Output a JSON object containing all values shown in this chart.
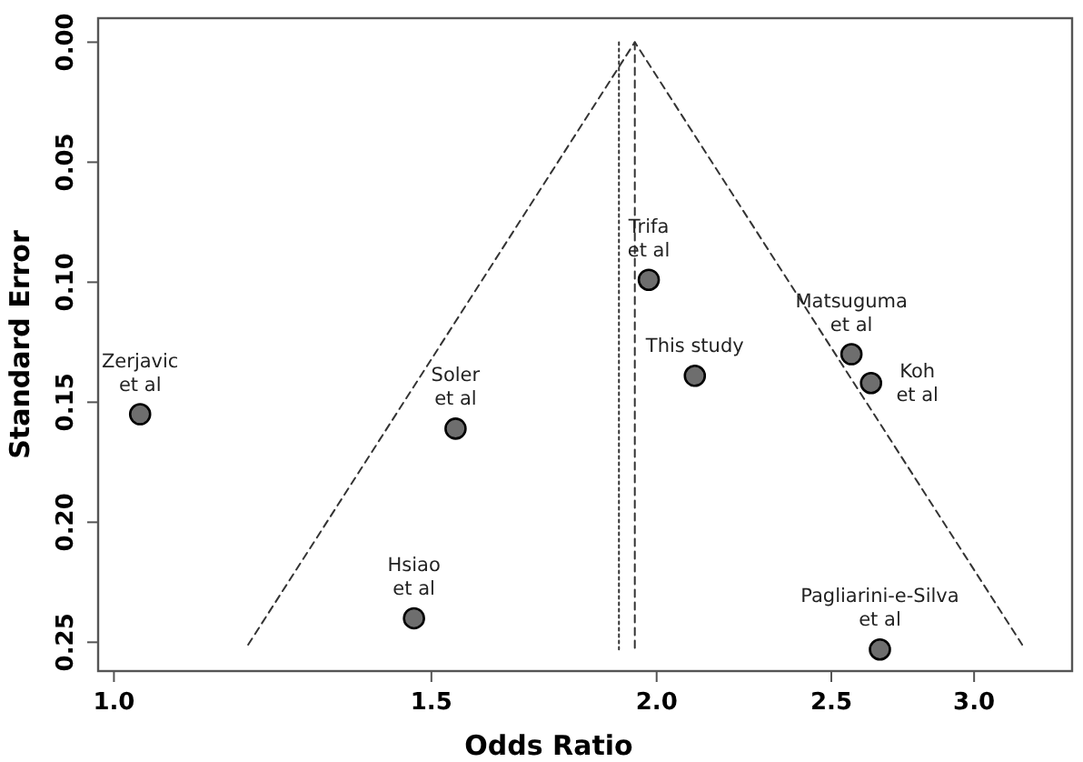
{
  "chart_data": {
    "type": "scatter",
    "xlabel": "Odds Ratio",
    "ylabel": "Standard Error",
    "log": "x",
    "xlim": [
      0.98,
      3.4
    ],
    "ylim": [
      0.262,
      -0.01
    ],
    "xticks": [
      {
        "value": 1,
        "label": "1.0"
      },
      {
        "value": 1.5,
        "label": "1.5"
      },
      {
        "value": 2,
        "label": "2.0"
      },
      {
        "value": 2.5,
        "label": "2.5"
      },
      {
        "value": 3,
        "label": "3.0"
      }
    ],
    "yticks": [
      {
        "value": 0,
        "label": "0.00"
      },
      {
        "value": 0.05,
        "label": "0.05"
      },
      {
        "value": 0.1,
        "label": "0.10"
      },
      {
        "value": 0.15,
        "label": "0.15"
      },
      {
        "value": 0.2,
        "label": "0.20"
      },
      {
        "value": 0.25,
        "label": "0.25"
      }
    ],
    "grid": false,
    "series": [
      {
        "type": "line",
        "color": "#333333",
        "line_style": "dashed",
        "marker": "none",
        "x": [
          1.187,
          1.945,
          3.19
        ],
        "values": [
          0.251,
          0,
          0.251
        ]
      },
      {
        "type": "line",
        "color": "#333333",
        "line_style": "dashed",
        "marker": "none",
        "x": [
          1.945,
          1.945
        ],
        "values": [
          0,
          0.253
        ]
      },
      {
        "type": "line",
        "color": "#333333",
        "line_style": "dotted",
        "marker": "none",
        "x": [
          1.906,
          1.906
        ],
        "values": [
          0,
          0.253
        ]
      },
      {
        "color": "#6e6e6e",
        "marker": "circle",
        "x": [
          1.034,
          1.547,
          1.467,
          1.98,
          2.1,
          2.565,
          2.63,
          2.66
        ],
        "values": [
          0.155,
          0.161,
          0.24,
          0.099,
          0.139,
          0.13,
          0.142,
          0.253
        ]
      }
    ],
    "annotations": [
      {
        "text": "Zerjavic\net al",
        "x": 1.034,
        "y": 0.155
      },
      {
        "text": "Soler\net al",
        "x": 1.547,
        "y": 0.161
      },
      {
        "text": "Hsiao\net al",
        "x": 1.467,
        "y": 0.24
      },
      {
        "text": "Trifa\net al",
        "x": 1.98,
        "y": 0.099
      },
      {
        "text": "This study",
        "x": 2.1,
        "y": 0.139
      },
      {
        "text": "Matsuguma\net al",
        "x": 2.565,
        "y": 0.13
      },
      {
        "text": "Koh\net al",
        "x": 2.63,
        "y": 0.142
      },
      {
        "text": "Pagliarini-e-Silva\net al",
        "x": 2.66,
        "y": 0.253
      }
    ]
  }
}
